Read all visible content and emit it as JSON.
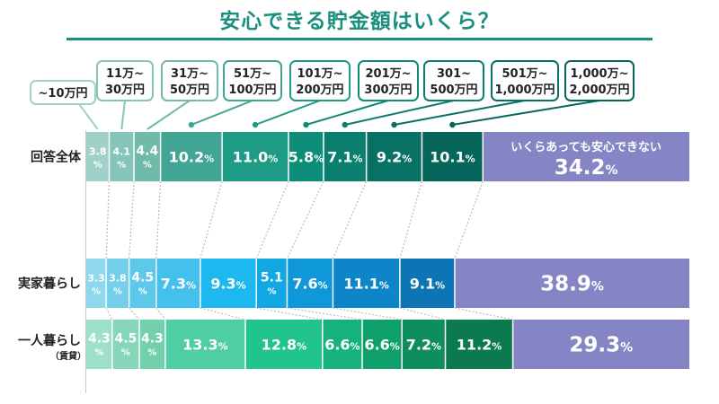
{
  "title": "安心できる貯金額はいくら？",
  "colors": {
    "title": "#1a8f80",
    "rows": [
      [
        "#9fd1c9",
        "#86c4b9",
        "#6fbaa9",
        "#42a593",
        "#1e9b84",
        "#0d8c77",
        "#0b7f6d",
        "#087163",
        "#06665a",
        "#8585c5"
      ],
      [
        "#8fd7ec",
        "#76cfea",
        "#5ec8ea",
        "#43c0ec",
        "#1cb8ef",
        "#12a8e4",
        "#0e98d9",
        "#0d86c9",
        "#0d75b5",
        "#8585c5"
      ],
      [
        "#9ee0c8",
        "#86d7b9",
        "#72d0ab",
        "#4fcda4",
        "#21c48d",
        "#16b27c",
        "#0fa06c",
        "#0d8e5c",
        "#0b7a4f",
        "#8585c5"
      ]
    ]
  },
  "legend_note": "いくらあっても安心できない",
  "chart_data": {
    "type": "bar",
    "stacked": true,
    "orientation": "horizontal",
    "title": "安心できる貯金額はいくら？",
    "unit": "%",
    "categories": [
      "~10万円",
      "11万~30万円",
      "31万~50万円",
      "51万~100万円",
      "101万~200万円",
      "201万~300万円",
      "301~500万円",
      "501万~1,000万円",
      "1,000万~2,000万円",
      "いくらあっても安心できない"
    ],
    "rows": [
      {
        "label": "回答全体",
        "sublabel": "",
        "values": [
          3.8,
          4.1,
          4.4,
          10.2,
          11.0,
          5.8,
          7.1,
          9.2,
          10.1,
          34.2
        ]
      },
      {
        "label": "実家暮らし",
        "sublabel": "",
        "values": [
          3.3,
          3.8,
          4.5,
          7.3,
          9.3,
          5.1,
          7.6,
          11.1,
          9.1,
          38.9
        ]
      },
      {
        "label": "一人暮らし",
        "sublabel": "（賃貸）",
        "values": [
          4.3,
          4.5,
          4.3,
          13.3,
          12.8,
          6.6,
          6.6,
          7.2,
          11.2,
          29.3
        ]
      }
    ],
    "callouts": [
      [
        "~10万円"
      ],
      [
        "11万~",
        "30万円"
      ],
      [
        "31万~",
        "50万円"
      ],
      [
        "51万~",
        "100万円"
      ],
      [
        "101万~",
        "200万円"
      ],
      [
        "201万~",
        "300万円"
      ],
      [
        "301~",
        "500万円"
      ],
      [
        "501万~",
        "1,000万円"
      ],
      [
        "1,000万~",
        "2,000万円"
      ]
    ]
  }
}
